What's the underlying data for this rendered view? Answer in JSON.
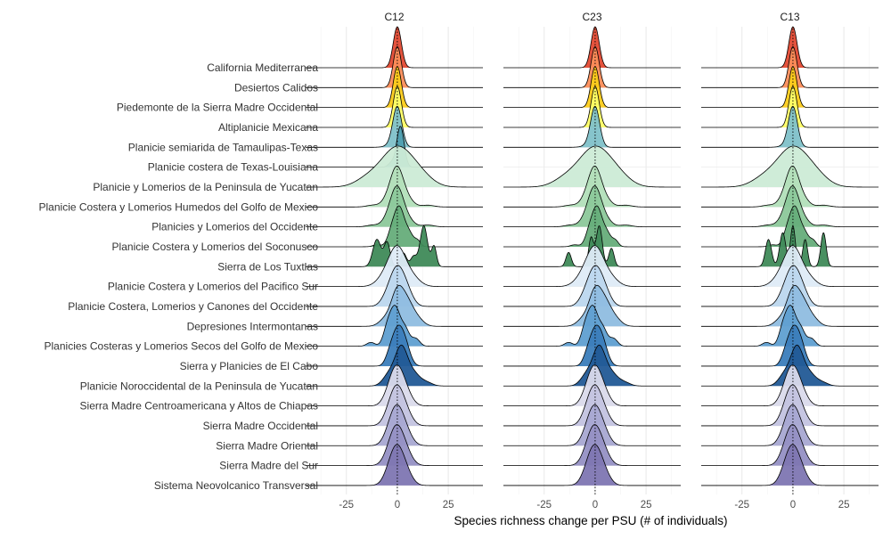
{
  "chart_data": {
    "type": "ridgeline",
    "xlabel": "Species richness change per PSU (# of individuals)",
    "xlim": [
      -45,
      42
    ],
    "xticks": [
      -25,
      0,
      25
    ],
    "grid": true,
    "legend": "none",
    "panels": [
      {
        "name": "C12"
      },
      {
        "name": "C23"
      },
      {
        "name": "C13"
      }
    ],
    "regions": [
      {
        "name": "California Mediterranea",
        "color": "#e34a33",
        "present": [
          true,
          true,
          true
        ]
      },
      {
        "name": "Desiertos Calidos",
        "color": "#fc8d59",
        "present": [
          true,
          true,
          true
        ]
      },
      {
        "name": "Piedemonte de la Sierra Madre Occidental",
        "color": "#fdcc1a",
        "present": [
          true,
          true,
          true
        ]
      },
      {
        "name": "Altiplanicie Mexicana",
        "color": "#ffff66",
        "present": [
          true,
          true,
          true
        ]
      },
      {
        "name": "Planicie semiarida de Tamaulipas-Texas",
        "color": "#80c1c9",
        "present": [
          true,
          true,
          true
        ]
      },
      {
        "name": "Planicie costera de Texas-Louisiana",
        "color": "#4f9fb0",
        "present": [
          true,
          false,
          false
        ]
      },
      {
        "name": "Planicie y Lomerios de la Peninsula de Yucatan",
        "color": "#ccebd6",
        "present": [
          true,
          true,
          true
        ]
      },
      {
        "name": "Planicie Costera y Lomerios Humedos del Golfo de Mexico",
        "color": "#b2dfb9",
        "present": [
          true,
          true,
          true
        ]
      },
      {
        "name": "Planicies y Lomerios del Occidente",
        "color": "#8cc89a",
        "present": [
          true,
          true,
          true
        ]
      },
      {
        "name": "Planicie Costera y Lomerios del Soconusco",
        "color": "#66ad7a",
        "present": [
          true,
          true,
          true
        ]
      },
      {
        "name": "Sierra de Los Tuxtlas",
        "color": "#3f8a58",
        "present": [
          true,
          true,
          true
        ]
      },
      {
        "name": "Planicie Costera y Lomerios del Pacifico Sur",
        "color": "#deebf7",
        "present": [
          true,
          true,
          true
        ]
      },
      {
        "name": "Planicie Costera, Lomerios y Canones del Occidente",
        "color": "#bcd7ee",
        "present": [
          true,
          true,
          true
        ]
      },
      {
        "name": "Depresiones Intermontanas",
        "color": "#8fbde0",
        "present": [
          true,
          true,
          true
        ]
      },
      {
        "name": "Planicies Costeras y Lomerios Secos del Golfo de Mexico",
        "color": "#5f9fd1",
        "present": [
          true,
          true,
          true
        ]
      },
      {
        "name": "Sierra y Planicies de El Cabo",
        "color": "#3b7dba",
        "present": [
          true,
          true,
          true
        ]
      },
      {
        "name": "Planicie Noroccidental de la  Peninsula de Yucatan",
        "color": "#225a96",
        "present": [
          true,
          true,
          true
        ]
      },
      {
        "name": "Sierra Madre Centroamericana y Altos de Chiapas",
        "color": "#dadaeb",
        "present": [
          true,
          true,
          true
        ]
      },
      {
        "name": "Sierra Madre Occidental",
        "color": "#c3c3e0",
        "present": [
          true,
          true,
          true
        ]
      },
      {
        "name": "Sierra Madre Oriental",
        "color": "#a8a8d2",
        "present": [
          true,
          true,
          true
        ]
      },
      {
        "name": "Sierra Madre del Sur",
        "color": "#9590c4",
        "present": [
          true,
          true,
          true
        ]
      },
      {
        "name": "Sistema Neovolcanico Transversal",
        "color": "#7e76b2",
        "present": [
          true,
          true,
          true
        ]
      }
    ],
    "densities": {
      "types": {
        "narrow": [
          [
            0,
            2.0,
            1.0
          ]
        ],
        "narrow2": [
          [
            0,
            2.2,
            1.0
          ],
          [
            -3,
            3,
            0.05
          ]
        ],
        "tex": [
          [
            1.5,
            1.8,
            1.0
          ],
          [
            -3,
            1.5,
            0.1
          ]
        ],
        "broad": [
          [
            0,
            8,
            0.3
          ],
          [
            -15,
            6,
            0.05
          ],
          [
            12,
            6,
            0.05
          ]
        ],
        "mod": [
          [
            0,
            3,
            1.0
          ],
          [
            -4,
            3,
            0.25
          ],
          [
            5,
            3,
            0.2
          ],
          [
            -12,
            3,
            0.05
          ],
          [
            15,
            3,
            0.05
          ]
        ],
        "soc": [
          [
            1,
            2.5,
            1.0
          ],
          [
            -3,
            2,
            0.3
          ],
          [
            6,
            2,
            0.3
          ],
          [
            10,
            1.5,
            0.15
          ],
          [
            -10,
            2,
            0.05
          ]
        ],
        "tux12": [
          [
            -10,
            2,
            0.4
          ],
          [
            -5,
            1.5,
            0.35
          ],
          [
            3,
            1.5,
            0.2
          ],
          [
            8,
            1.5,
            0.15
          ],
          [
            13,
            1.8,
            0.6
          ],
          [
            18,
            1.2,
            0.3
          ]
        ],
        "tux23": [
          [
            -13,
            1.3,
            0.35
          ],
          [
            -2,
            1.2,
            0.7
          ],
          [
            2,
            1.5,
            1.0
          ],
          [
            8,
            1.3,
            0.45
          ]
        ],
        "tux13": [
          [
            -12,
            1.5,
            0.4
          ],
          [
            -5,
            1.5,
            0.5
          ],
          [
            0,
            1.2,
            0.6
          ],
          [
            6,
            1.2,
            0.4
          ],
          [
            15,
            1.3,
            0.5
          ]
        ],
        "pacsur": [
          [
            0,
            4,
            0.8
          ],
          [
            -6,
            4,
            0.2
          ],
          [
            7,
            4,
            0.2
          ]
        ],
        "canones": [
          [
            0,
            3.5,
            1.0
          ],
          [
            5,
            3,
            0.3
          ],
          [
            -5,
            3,
            0.2
          ]
        ],
        "depr": [
          [
            0,
            3,
            1.0
          ],
          [
            5,
            3,
            0.6
          ],
          [
            10,
            3,
            0.2
          ],
          [
            -6,
            3,
            0.2
          ]
        ],
        "secos": [
          [
            -1,
            2.5,
            1.0
          ],
          [
            -5,
            2,
            0.4
          ],
          [
            4,
            2,
            0.4
          ],
          [
            9,
            2,
            0.2
          ],
          [
            -13,
            2,
            0.1
          ]
        ],
        "cabo": [
          [
            0,
            2.8,
            1.0
          ],
          [
            4,
            2.5,
            0.5
          ],
          [
            -4,
            2,
            0.2
          ]
        ],
        "noroc": [
          [
            2,
            3,
            1.0
          ],
          [
            -4,
            3,
            0.3
          ],
          [
            8,
            3,
            0.3
          ],
          [
            14,
            3,
            0.1
          ]
        ],
        "mont": [
          [
            0,
            3.5,
            1.0
          ],
          [
            -4,
            3,
            0.2
          ],
          [
            5,
            3,
            0.2
          ]
        ]
      },
      "assignment": [
        [
          "narrow",
          "narrow",
          "narrow"
        ],
        [
          "narrow",
          "narrow",
          "narrow"
        ],
        [
          "narrow",
          "narrow",
          "narrow"
        ],
        [
          "narrow",
          "narrow",
          "narrow"
        ],
        [
          "narrow2",
          "narrow2",
          "narrow2"
        ],
        [
          "tex",
          null,
          null
        ],
        [
          "broad",
          "broad",
          "broad"
        ],
        [
          "mod",
          "mod",
          "mod"
        ],
        [
          "mod",
          "mod",
          "mod"
        ],
        [
          "soc",
          "soc",
          "soc"
        ],
        [
          "tux12",
          "tux23",
          "tux13"
        ],
        [
          "pacsur",
          "pacsur",
          "pacsur"
        ],
        [
          "canones",
          "canones",
          "canones"
        ],
        [
          "depr",
          "depr",
          "depr"
        ],
        [
          "secos",
          "secos",
          "secos"
        ],
        [
          "cabo",
          "cabo",
          "cabo"
        ],
        [
          "noroc",
          "noroc",
          "noroc"
        ],
        [
          "mont",
          "mont",
          "mont"
        ],
        [
          "mont",
          "mont",
          "mont"
        ],
        [
          "mont",
          "mont",
          "mont"
        ],
        [
          "mont",
          "mont",
          "mont"
        ],
        [
          "mont",
          "mont",
          "mont"
        ]
      ]
    }
  }
}
